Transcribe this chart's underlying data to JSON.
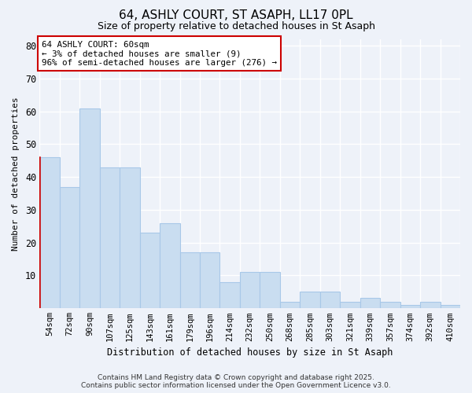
{
  "title1": "64, ASHLY COURT, ST ASAPH, LL17 0PL",
  "title2": "Size of property relative to detached houses in St Asaph",
  "xlabel": "Distribution of detached houses by size in St Asaph",
  "ylabel": "Number of detached properties",
  "categories": [
    "54sqm",
    "72sqm",
    "90sqm",
    "107sqm",
    "125sqm",
    "143sqm",
    "161sqm",
    "179sqm",
    "196sqm",
    "214sqm",
    "232sqm",
    "250sqm",
    "268sqm",
    "285sqm",
    "303sqm",
    "321sqm",
    "339sqm",
    "357sqm",
    "374sqm",
    "392sqm",
    "410sqm"
  ],
  "values": [
    46,
    37,
    61,
    43,
    43,
    23,
    26,
    17,
    17,
    8,
    11,
    11,
    2,
    5,
    5,
    2,
    3,
    2,
    1,
    2,
    1
  ],
  "bar_color": "#c9ddf0",
  "bar_edge_color": "#a8c8e8",
  "red_line_color": "#cc0000",
  "annotation_text": "64 ASHLY COURT: 60sqm\n← 3% of detached houses are smaller (9)\n96% of semi-detached houses are larger (276) →",
  "annotation_box_facecolor": "#ffffff",
  "annotation_box_edgecolor": "#cc0000",
  "ylim": [
    0,
    82
  ],
  "yticks": [
    0,
    10,
    20,
    30,
    40,
    50,
    60,
    70,
    80
  ],
  "bg_color": "#eef2f9",
  "plot_bg_color": "#eef2f9",
  "grid_color": "#ffffff",
  "footer1": "Contains HM Land Registry data © Crown copyright and database right 2025.",
  "footer2": "Contains public sector information licensed under the Open Government Licence v3.0."
}
